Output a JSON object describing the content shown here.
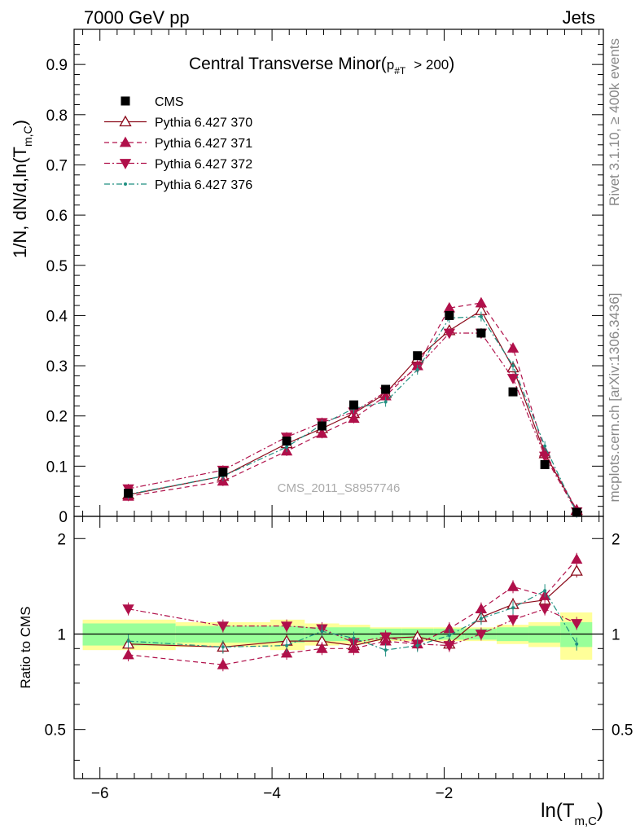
{
  "header": {
    "left": "7000 GeV pp",
    "right": "Jets"
  },
  "side_labels": {
    "rivet": "Rivet 3.1.10, ≥ 400k events",
    "mcplots": "mcplots.cern.ch [arXiv:1306.3436]"
  },
  "chart_data": [
    {
      "type": "scatter",
      "panel": "main",
      "title": "Central Transverse Minor",
      "title_cut_base": "p",
      "title_cut_sub": "#T",
      "title_cut_rest": "> 200",
      "watermark": "CMS_2011_S8957746",
      "ylabel_parts": {
        "a": "1/N",
        "b": ", dN/d,ln(T",
        "c": "m,C",
        "d": ")"
      },
      "xlim": [
        -6.3,
        -0.15
      ],
      "ylim": [
        0,
        0.97
      ],
      "yticks": [
        0,
        0.1,
        0.2,
        0.3,
        0.4,
        0.5,
        0.6,
        0.7,
        0.8,
        0.9
      ],
      "ytick_labels": [
        "0",
        "0.1",
        "0.2",
        "0.3",
        "0.4",
        "0.5",
        "0.6",
        "0.7",
        "0.8",
        "0.9"
      ],
      "x": [
        -5.67,
        -4.57,
        -3.83,
        -3.42,
        -3.05,
        -2.68,
        -2.31,
        -1.94,
        -1.57,
        -1.2,
        -0.83,
        -0.46
      ],
      "legend": [
        "CMS",
        "Pythia 6.427 370",
        "Pythia 6.427 371",
        "Pythia 6.427 372",
        "Pythia 6.427 376"
      ],
      "series": [
        {
          "name": "CMS",
          "color": "#000000",
          "marker": "square",
          "line": "none",
          "values": [
            0.046,
            0.088,
            0.15,
            0.18,
            0.222,
            0.253,
            0.32,
            0.4,
            0.365,
            0.248,
            0.103,
            0.008
          ]
        },
        {
          "name": "Pythia 6.427 370",
          "color": "#8b0a1a",
          "marker": "triangle-up-open",
          "line": "solid",
          "values": [
            0.043,
            0.08,
            0.145,
            0.175,
            0.205,
            0.245,
            0.315,
            0.37,
            0.41,
            0.296,
            0.125,
            0.012
          ]
        },
        {
          "name": "Pythia 6.427 371",
          "color": "#b0104a",
          "marker": "triangle-up",
          "line": "dashed",
          "values": [
            0.04,
            0.07,
            0.13,
            0.165,
            0.195,
            0.24,
            0.3,
            0.415,
            0.425,
            0.335,
            0.128,
            0.013
          ]
        },
        {
          "name": "Pythia 6.427 372",
          "color": "#b0104a",
          "marker": "triangle-down",
          "line": "dashdot",
          "values": [
            0.055,
            0.092,
            0.158,
            0.187,
            0.208,
            0.248,
            0.297,
            0.365,
            0.365,
            0.275,
            0.12,
            0.009
          ]
        },
        {
          "name": "Pythia 6.427 376",
          "color": "#1f8f80",
          "marker": "dot",
          "line": "dashdot",
          "values": [
            0.044,
            0.08,
            0.138,
            0.183,
            0.215,
            0.228,
            0.292,
            0.395,
            0.398,
            0.3,
            0.14,
            0.007
          ]
        }
      ]
    },
    {
      "type": "scatter",
      "panel": "ratio",
      "ylabel": "Ratio to CMS",
      "xlabel_base": "ln(T",
      "xlabel_sub": "m,C",
      "xlabel_close": ")",
      "xlim": [
        -6.3,
        -0.15
      ],
      "ylim": [
        0.35,
        2.35
      ],
      "yticks": [
        0.5,
        1,
        2
      ],
      "ytick_labels": [
        "0.5",
        "1",
        "2"
      ],
      "xticks": [
        -6,
        -4,
        -2
      ],
      "xtick_labels": [
        "−6",
        "−4",
        "−2"
      ],
      "bands": {
        "edges": [
          -6.2,
          -5.12,
          -4.02,
          -3.62,
          -3.22,
          -2.86,
          -2.49,
          -2.12,
          -1.76,
          -1.39,
          -1.02,
          -0.65,
          -0.28
        ],
        "green": [
          0.08,
          0.06,
          0.06,
          0.05,
          0.05,
          0.04,
          0.04,
          0.04,
          0.04,
          0.05,
          0.06,
          0.09
        ],
        "yellow": [
          0.11,
          0.09,
          0.11,
          0.08,
          0.07,
          0.05,
          0.05,
          0.05,
          0.05,
          0.07,
          0.09,
          0.17
        ]
      },
      "series": [
        {
          "name": "Pythia 6.427 370",
          "values": [
            0.93,
            0.91,
            0.95,
            0.95,
            0.92,
            0.97,
            0.98,
            0.93,
            1.13,
            1.24,
            1.28,
            1.58
          ]
        },
        {
          "name": "Pythia 6.427 371",
          "values": [
            0.86,
            0.8,
            0.87,
            0.9,
            0.9,
            0.95,
            0.93,
            1.04,
            1.2,
            1.41,
            1.32,
            1.72
          ]
        },
        {
          "name": "Pythia 6.427 372",
          "values": [
            1.2,
            1.06,
            1.06,
            1.04,
            0.94,
            0.98,
            0.93,
            0.92,
            1.0,
            1.11,
            1.2,
            1.08
          ]
        },
        {
          "name": "Pythia 6.427 376",
          "values": [
            0.95,
            0.91,
            0.92,
            1.02,
            0.97,
            0.89,
            0.92,
            0.99,
            1.12,
            1.21,
            1.37,
            0.93
          ]
        }
      ]
    }
  ]
}
